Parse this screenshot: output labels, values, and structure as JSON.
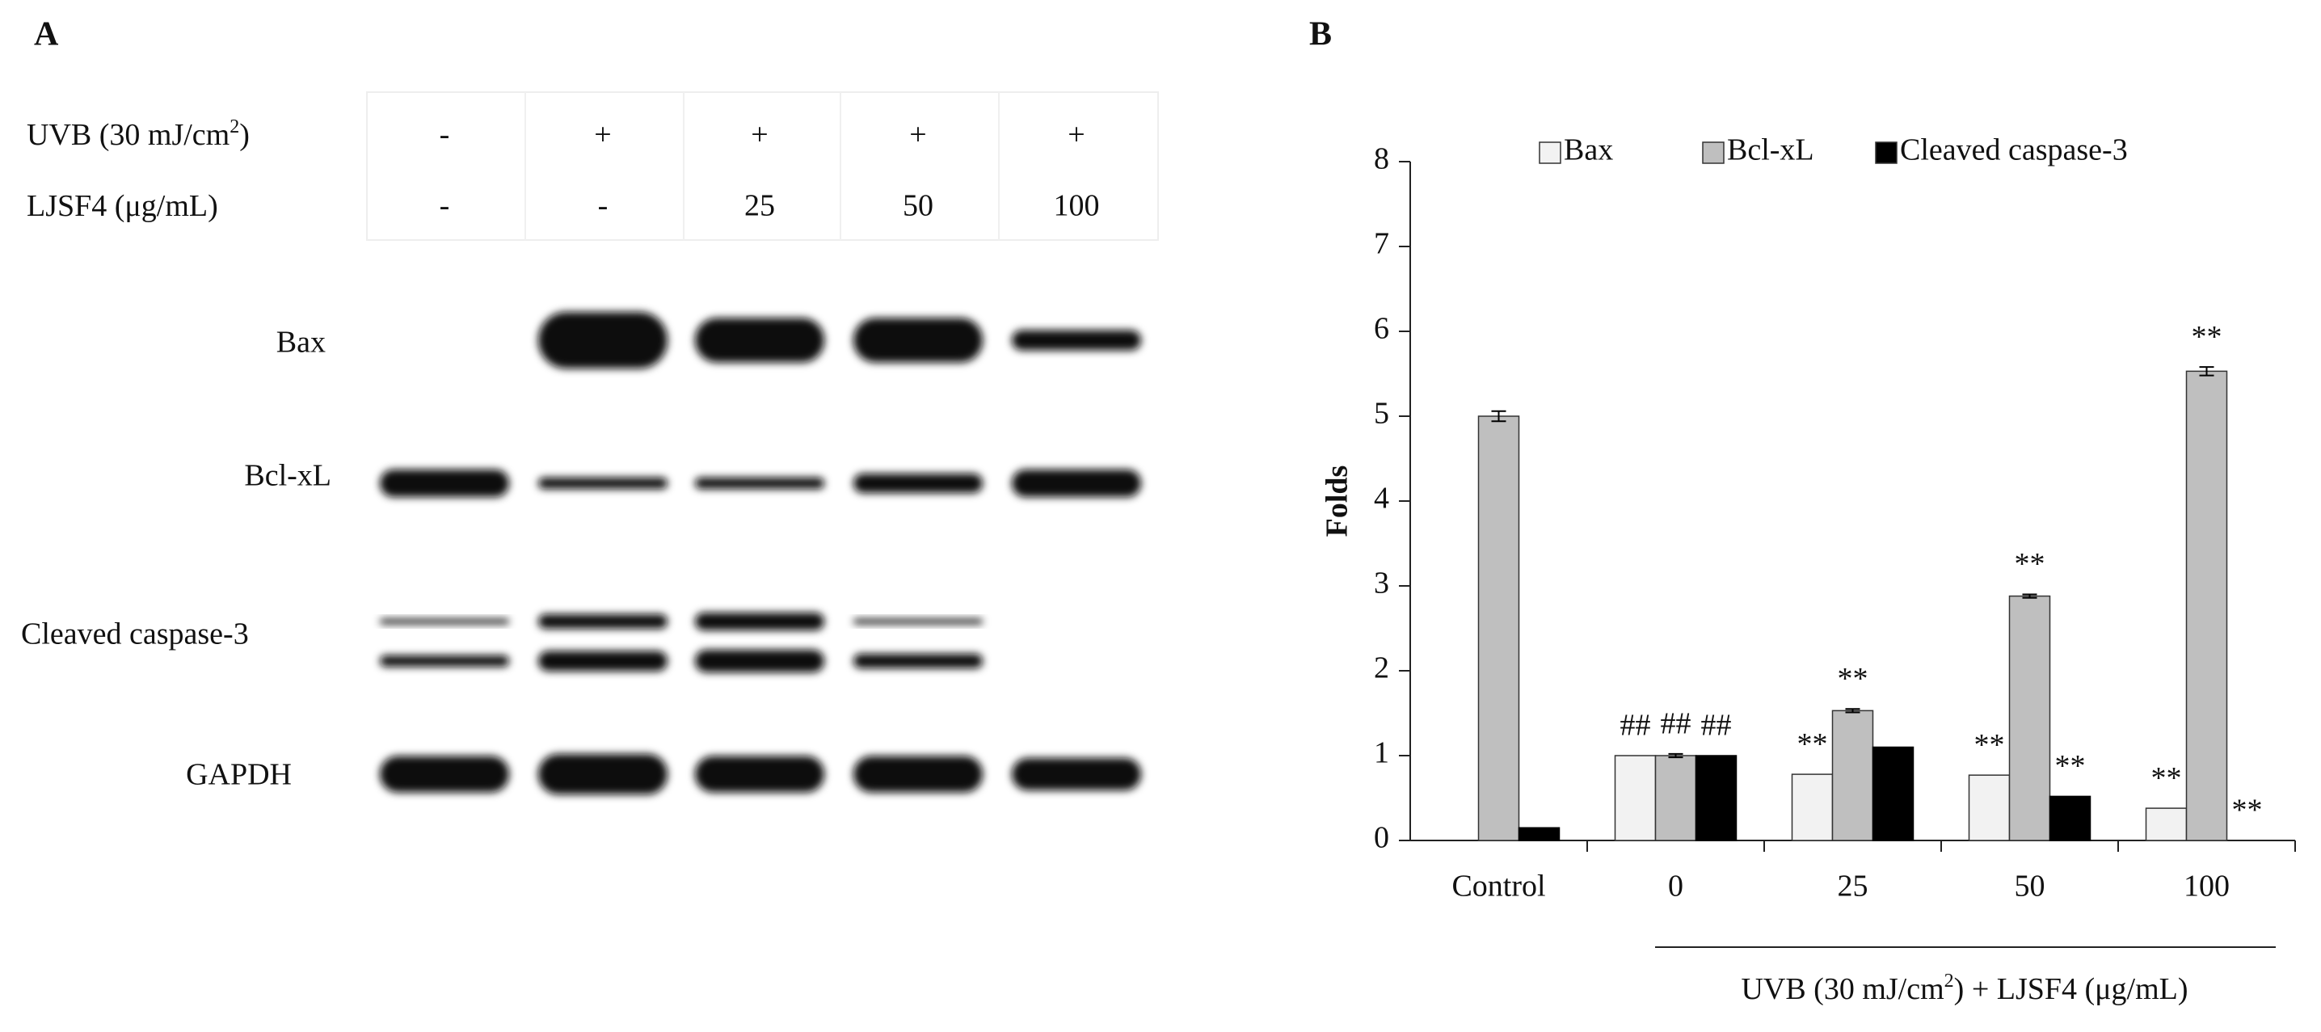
{
  "panel_a": {
    "label": "A",
    "treatments": [
      {
        "label_parts": [
          "UVB (30 mJ/cm",
          "2",
          ")"
        ],
        "values": [
          "-",
          "+",
          "+",
          "+",
          "+"
        ]
      },
      {
        "label_parts": [
          "LJSF4 (μg/mL)"
        ],
        "values": [
          "-",
          "-",
          "25",
          "50",
          "100"
        ]
      }
    ],
    "bands": [
      "Bax",
      "Bcl-xL",
      "Cleaved caspase-3",
      "GAPDH"
    ]
  },
  "chart_data": {
    "type": "bar",
    "panel_label": "B",
    "ylabel": "Folds",
    "categories": [
      "Control",
      "0",
      "25",
      "50",
      "100"
    ],
    "group_label_parts": [
      "UVB (30 mJ/cm",
      "2",
      ")  + LJSF4 (μg/mL)"
    ],
    "ylim": [
      0,
      8
    ],
    "yticks": [
      0,
      1,
      2,
      3,
      4,
      5,
      6,
      7,
      8
    ],
    "grid": false,
    "legend": "top",
    "series": [
      {
        "name": "Bax",
        "color": "#f2f2f2",
        "values": [
          0,
          1.0,
          0.78,
          0.77,
          0.38
        ],
        "annotations": [
          null,
          "##",
          "**",
          "**",
          "**"
        ]
      },
      {
        "name": "Bcl-xL",
        "color": "#bfbfbf",
        "values": [
          5.0,
          1.0,
          1.53,
          2.88,
          5.53
        ],
        "errors": [
          0.06,
          0.02,
          0.02,
          0.02,
          0.05
        ],
        "annotations": [
          null,
          "##",
          "**",
          "**",
          "**"
        ]
      },
      {
        "name": "Cleaved caspase-3",
        "color": "#000000",
        "values": [
          0.15,
          1.0,
          1.1,
          0.52,
          0
        ],
        "annotations": [
          null,
          "##",
          null,
          "**",
          "**"
        ]
      }
    ]
  }
}
